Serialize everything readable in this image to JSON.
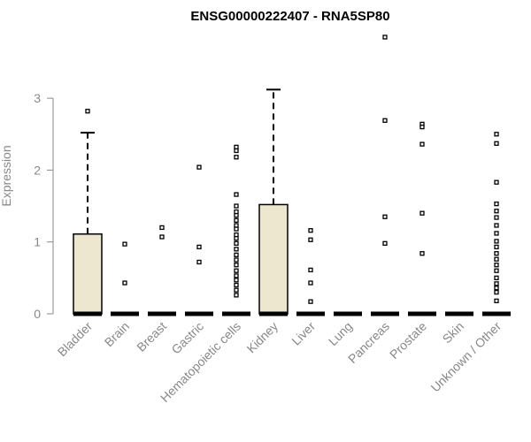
{
  "chart_data": {
    "type": "boxplot",
    "title": "ENSG00000222407 - RNA5SP80",
    "ylabel": "Expression",
    "xlabel": "",
    "ylim": [
      0,
      3.9
    ],
    "yticks": [
      0,
      1,
      2,
      3
    ],
    "box_fill": "#ede7cf",
    "categories": [
      "Bladder",
      "Brain",
      "Breast",
      "Gastric",
      "Hematopoietic cells",
      "Kidney",
      "Liver",
      "Lung",
      "Pancreas",
      "Prostate",
      "Skin",
      "Unknown / Other"
    ],
    "boxes": [
      {
        "q1": 0,
        "median": 0,
        "q3": 1.11,
        "whisker_low": 0,
        "whisker_high": 2.52,
        "outliers": [
          2.82
        ]
      },
      {
        "q1": 0,
        "median": 0,
        "q3": 0,
        "whisker_low": 0,
        "whisker_high": 0,
        "outliers": [
          0.97,
          0.43
        ]
      },
      {
        "q1": 0,
        "median": 0,
        "q3": 0,
        "whisker_low": 0,
        "whisker_high": 0,
        "outliers": [
          1.2,
          1.07
        ]
      },
      {
        "q1": 0,
        "median": 0,
        "q3": 0,
        "whisker_low": 0,
        "whisker_high": 0,
        "outliers": [
          2.04,
          0.93,
          0.72
        ]
      },
      {
        "q1": 0,
        "median": 0,
        "q3": 0,
        "whisker_low": 0,
        "whisker_high": 0,
        "outliers": [
          2.32,
          2.27,
          2.18,
          1.66,
          1.5,
          1.42,
          1.37,
          1.3,
          1.23,
          1.18,
          1.1,
          1.05,
          0.98,
          0.9,
          0.82,
          0.75,
          0.68,
          0.6,
          0.53,
          0.47,
          0.4,
          0.33,
          0.26
        ]
      },
      {
        "q1": 0,
        "median": 0,
        "q3": 1.52,
        "whisker_low": 0,
        "whisker_high": 3.12,
        "outliers": []
      },
      {
        "q1": 0,
        "median": 0,
        "q3": 0,
        "whisker_low": 0,
        "whisker_high": 0,
        "outliers": [
          1.16,
          1.03,
          0.61,
          0.43,
          0.17
        ]
      },
      {
        "q1": 0,
        "median": 0,
        "q3": 0,
        "whisker_low": 0,
        "whisker_high": 0,
        "outliers": []
      },
      {
        "q1": 0,
        "median": 0,
        "q3": 0,
        "whisker_low": 0,
        "whisker_high": 0,
        "outliers": [
          3.85,
          2.69,
          1.35,
          0.98
        ]
      },
      {
        "q1": 0,
        "median": 0,
        "q3": 0,
        "whisker_low": 0,
        "whisker_high": 0,
        "outliers": [
          2.64,
          2.6,
          2.36,
          1.4,
          0.84
        ]
      },
      {
        "q1": 0,
        "median": 0,
        "q3": 0,
        "whisker_low": 0,
        "whisker_high": 0,
        "outliers": []
      },
      {
        "q1": 0,
        "median": 0,
        "q3": 0,
        "whisker_low": 0,
        "whisker_high": 0,
        "outliers": [
          2.5,
          2.37,
          1.83,
          1.53,
          1.43,
          1.34,
          1.23,
          1.12,
          1.01,
          0.93,
          0.84,
          0.76,
          0.68,
          0.6,
          0.5,
          0.42,
          0.36,
          0.3,
          0.18
        ]
      }
    ]
  }
}
